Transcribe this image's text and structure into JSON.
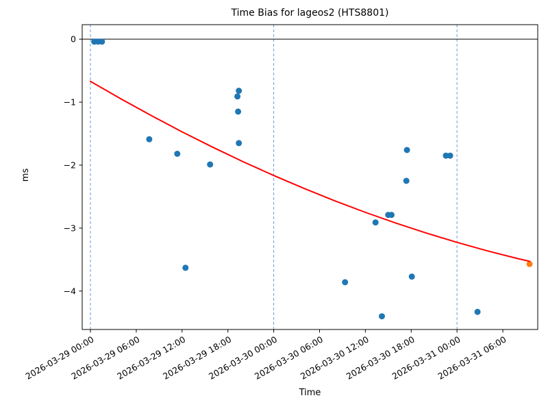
{
  "chart_data": {
    "type": "scatter",
    "title": "Time Bias for lageos2 (HTS8801)",
    "xlabel": "Time",
    "ylabel": "ms",
    "x_epoch": "2026-03-29 00:00",
    "xlim_hours": [
      -1.08,
      58.57
    ],
    "ylim": [
      -4.61,
      0.23
    ],
    "grid": "day-boundaries-only",
    "legend": "none",
    "colors": {
      "scatter": "#1f77b4",
      "highlight": "#ff7f0e",
      "trend": "#ff0000",
      "day_line": "#6c9bd2",
      "zero_line": "#000000",
      "axis": "#000000"
    },
    "x_ticks": [
      {
        "hours": 0,
        "label": "2026-03-29 00:00"
      },
      {
        "hours": 6,
        "label": "2026-03-29 06:00"
      },
      {
        "hours": 12,
        "label": "2026-03-29 12:00"
      },
      {
        "hours": 18,
        "label": "2026-03-29 18:00"
      },
      {
        "hours": 24,
        "label": "2026-03-30 00:00"
      },
      {
        "hours": 30,
        "label": "2026-03-30 06:00"
      },
      {
        "hours": 36,
        "label": "2026-03-30 12:00"
      },
      {
        "hours": 42,
        "label": "2026-03-30 18:00"
      },
      {
        "hours": 48,
        "label": "2026-03-31 00:00"
      },
      {
        "hours": 54,
        "label": "2026-03-31 06:00"
      }
    ],
    "y_ticks": [
      {
        "v": 0,
        "label": "0"
      },
      {
        "v": -1,
        "label": "−1"
      },
      {
        "v": -2,
        "label": "−2"
      },
      {
        "v": -3,
        "label": "−3"
      },
      {
        "v": -4,
        "label": "−4"
      }
    ],
    "day_gridlines_hours": [
      0,
      24,
      48
    ],
    "zero_line_value": 0,
    "series": [
      {
        "name": "time-bias-observations",
        "type": "scatter",
        "color_key": "scatter",
        "points": [
          {
            "t": "2026-03-29 00:30",
            "v": -0.04
          },
          {
            "t": "2026-03-29 01:00",
            "v": -0.04
          },
          {
            "t": "2026-03-29 01:30",
            "v": -0.04
          },
          {
            "t": "2026-03-29 07:42",
            "v": -1.59
          },
          {
            "t": "2026-03-29 11:22",
            "v": -1.82
          },
          {
            "t": "2026-03-29 12:27",
            "v": -3.63
          },
          {
            "t": "2026-03-29 15:40",
            "v": -1.99
          },
          {
            "t": "2026-03-29 19:15",
            "v": -0.91
          },
          {
            "t": "2026-03-29 19:26",
            "v": -0.82
          },
          {
            "t": "2026-03-29 19:20",
            "v": -1.15
          },
          {
            "t": "2026-03-29 19:26",
            "v": -1.65
          },
          {
            "t": "2026-03-30 09:20",
            "v": -3.86
          },
          {
            "t": "2026-03-30 13:20",
            "v": -2.91
          },
          {
            "t": "2026-03-30 15:00",
            "v": -2.79
          },
          {
            "t": "2026-03-30 15:25",
            "v": -2.79
          },
          {
            "t": "2026-03-30 14:10",
            "v": -4.4
          },
          {
            "t": "2026-03-30 17:27",
            "v": -1.76
          },
          {
            "t": "2026-03-30 17:22",
            "v": -2.25
          },
          {
            "t": "2026-03-30 18:05",
            "v": -3.77
          },
          {
            "t": "2026-03-30 22:33",
            "v": -1.85
          },
          {
            "t": "2026-03-30 23:06",
            "v": -1.85
          },
          {
            "t": "2026-03-31 02:41",
            "v": -4.33
          }
        ]
      },
      {
        "name": "latest-extrapolated-point",
        "type": "scatter",
        "color_key": "highlight",
        "points": [
          {
            "t": "2026-03-31 09:30",
            "v": -3.57
          }
        ]
      },
      {
        "name": "trend-fit-curve",
        "type": "line",
        "color_key": "trend",
        "samples_hours_value": [
          [
            0,
            -0.67
          ],
          [
            4,
            -0.949
          ],
          [
            8,
            -1.216
          ],
          [
            12,
            -1.472
          ],
          [
            16,
            -1.715
          ],
          [
            20,
            -1.946
          ],
          [
            24,
            -2.165
          ],
          [
            28,
            -2.372
          ],
          [
            32,
            -2.567
          ],
          [
            36,
            -2.75
          ],
          [
            40,
            -2.921
          ],
          [
            44,
            -3.08
          ],
          [
            48,
            -3.227
          ],
          [
            52,
            -3.362
          ],
          [
            56,
            -3.485
          ],
          [
            57.5,
            -3.528
          ]
        ]
      }
    ]
  }
}
